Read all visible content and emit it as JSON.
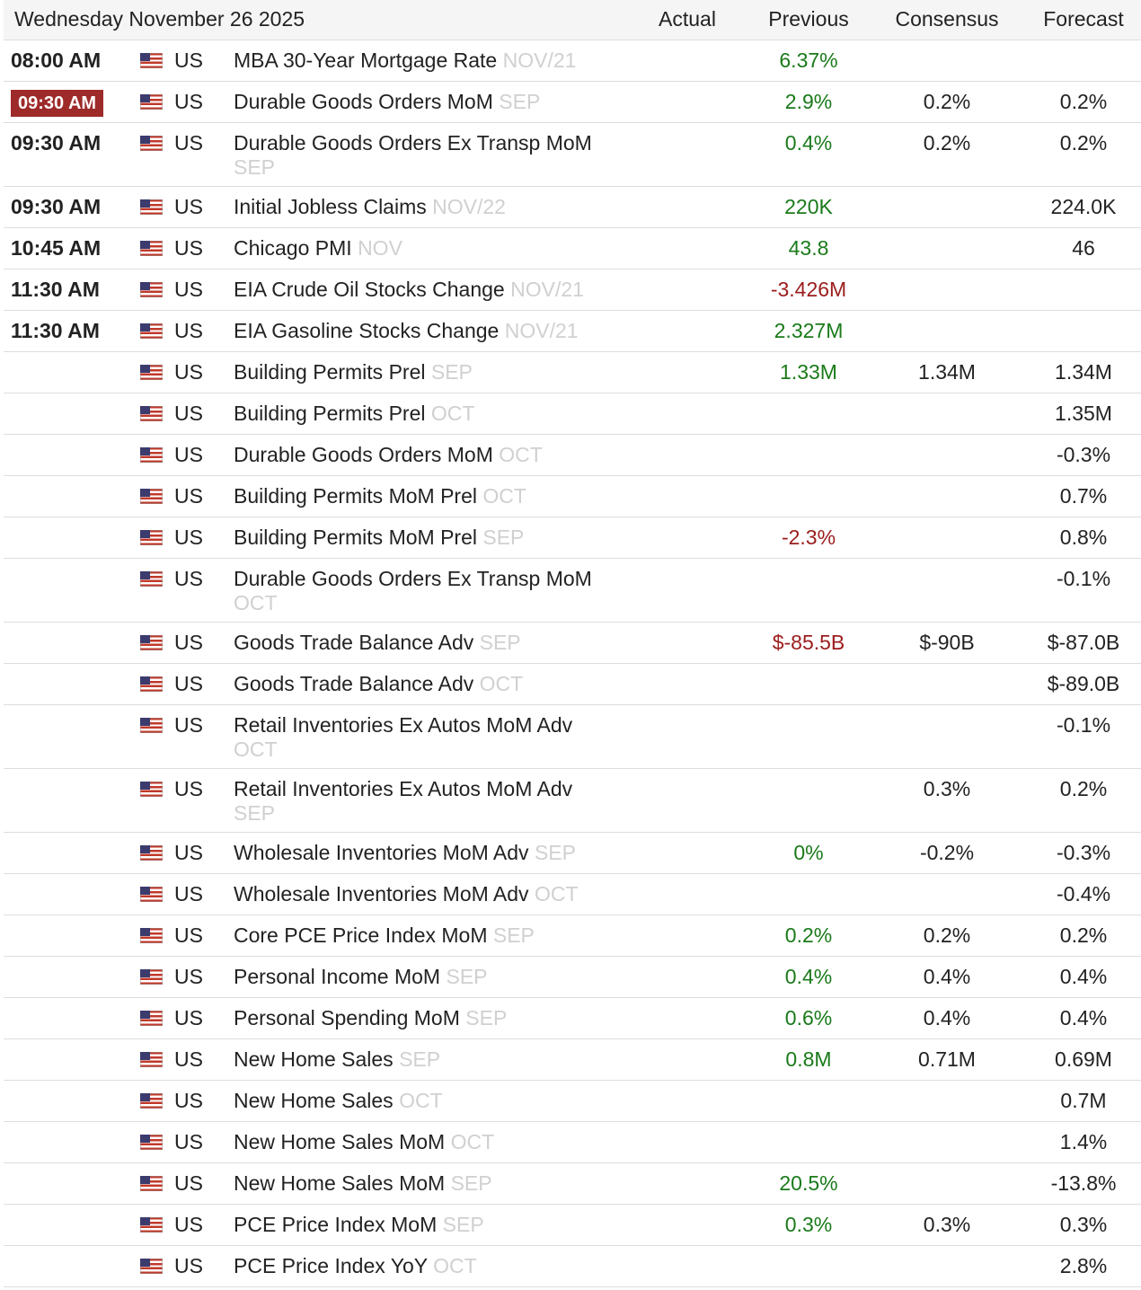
{
  "header": {
    "date": "Wednesday November 26 2025",
    "actual": "Actual",
    "previous": "Previous",
    "consensus": "Consensus",
    "forecast": "Forecast"
  },
  "colors": {
    "positive": "#1a7a1a",
    "negative": "#9b1c1c",
    "reference": "#d0d0d0",
    "badge": "#9e2a2a"
  },
  "rows": [
    {
      "time": "08:00 AM",
      "country": "US",
      "event": "MBA 30-Year Mortgage Rate",
      "ref": "NOV/21",
      "actual": "",
      "previous": "6.37%",
      "prev_tone": "pos",
      "consensus": "",
      "forecast": ""
    },
    {
      "time": "09:30 AM",
      "time_highlight": true,
      "country": "US",
      "event": "Durable Goods Orders MoM",
      "ref": "SEP",
      "actual": "",
      "previous": "2.9%",
      "prev_tone": "pos",
      "consensus": "0.2%",
      "forecast": "0.2%"
    },
    {
      "time": "09:30 AM",
      "country": "US",
      "event": "Durable Goods Orders Ex Transp MoM",
      "ref": "SEP",
      "tall": true,
      "actual": "",
      "previous": "0.4%",
      "prev_tone": "pos",
      "consensus": "0.2%",
      "forecast": "0.2%"
    },
    {
      "time": "09:30 AM",
      "country": "US",
      "event": "Initial Jobless Claims",
      "ref": "NOV/22",
      "actual": "",
      "previous": "220K",
      "prev_tone": "pos",
      "consensus": "",
      "forecast": "224.0K"
    },
    {
      "time": "10:45 AM",
      "country": "US",
      "event": "Chicago PMI",
      "ref": "NOV",
      "actual": "",
      "previous": "43.8",
      "prev_tone": "pos",
      "consensus": "",
      "forecast": "46"
    },
    {
      "time": "11:30 AM",
      "country": "US",
      "event": "EIA Crude Oil Stocks Change",
      "ref": "NOV/21",
      "actual": "",
      "previous": "-3.426M",
      "prev_tone": "neg",
      "consensus": "",
      "forecast": ""
    },
    {
      "time": "11:30 AM",
      "country": "US",
      "event": "EIA Gasoline Stocks Change",
      "ref": "NOV/21",
      "actual": "",
      "previous": "2.327M",
      "prev_tone": "pos",
      "consensus": "",
      "forecast": ""
    },
    {
      "time": "",
      "country": "US",
      "event": "Building Permits Prel",
      "ref": "SEP",
      "actual": "",
      "previous": "1.33M",
      "prev_tone": "pos",
      "consensus": "1.34M",
      "forecast": "1.34M"
    },
    {
      "time": "",
      "country": "US",
      "event": "Building Permits Prel",
      "ref": "OCT",
      "actual": "",
      "previous": "",
      "prev_tone": "pos",
      "consensus": "",
      "forecast": "1.35M"
    },
    {
      "time": "",
      "country": "US",
      "event": "Durable Goods Orders MoM",
      "ref": "OCT",
      "actual": "",
      "previous": "",
      "prev_tone": "pos",
      "consensus": "",
      "forecast": "-0.3%"
    },
    {
      "time": "",
      "country": "US",
      "event": "Building Permits MoM Prel",
      "ref": "OCT",
      "actual": "",
      "previous": "",
      "prev_tone": "pos",
      "consensus": "",
      "forecast": "0.7%"
    },
    {
      "time": "",
      "country": "US",
      "event": "Building Permits MoM Prel",
      "ref": "SEP",
      "actual": "",
      "previous": "-2.3%",
      "prev_tone": "neg",
      "consensus": "",
      "forecast": "0.8%"
    },
    {
      "time": "",
      "country": "US",
      "event": "Durable Goods Orders Ex Transp MoM",
      "ref": "OCT",
      "tall": true,
      "actual": "",
      "previous": "",
      "prev_tone": "pos",
      "consensus": "",
      "forecast": "-0.1%"
    },
    {
      "time": "",
      "country": "US",
      "event": "Goods Trade Balance Adv",
      "ref": "SEP",
      "actual": "",
      "previous": "$-85.5B",
      "prev_tone": "neg",
      "consensus": "$-90B",
      "forecast": "$-87.0B"
    },
    {
      "time": "",
      "country": "US",
      "event": "Goods Trade Balance Adv",
      "ref": "OCT",
      "actual": "",
      "previous": "",
      "prev_tone": "pos",
      "consensus": "",
      "forecast": "$-89.0B"
    },
    {
      "time": "",
      "country": "US",
      "event": "Retail Inventories Ex Autos MoM Adv",
      "ref": "OCT",
      "tall": true,
      "actual": "",
      "previous": "",
      "prev_tone": "pos",
      "consensus": "",
      "forecast": "-0.1%"
    },
    {
      "time": "",
      "country": "US",
      "event": "Retail Inventories Ex Autos MoM Adv",
      "ref": "SEP",
      "tall": true,
      "actual": "",
      "previous": "",
      "prev_tone": "pos",
      "consensus": "0.3%",
      "forecast": "0.2%"
    },
    {
      "time": "",
      "country": "US",
      "event": "Wholesale Inventories MoM Adv",
      "ref": "SEP",
      "actual": "",
      "previous": "0%",
      "prev_tone": "pos",
      "consensus": "-0.2%",
      "forecast": "-0.3%"
    },
    {
      "time": "",
      "country": "US",
      "event": "Wholesale Inventories MoM Adv",
      "ref": "OCT",
      "actual": "",
      "previous": "",
      "prev_tone": "pos",
      "consensus": "",
      "forecast": "-0.4%"
    },
    {
      "time": "",
      "country": "US",
      "event": "Core PCE Price Index MoM",
      "ref": "SEP",
      "actual": "",
      "previous": "0.2%",
      "prev_tone": "pos",
      "consensus": "0.2%",
      "forecast": "0.2%"
    },
    {
      "time": "",
      "country": "US",
      "event": "Personal Income MoM",
      "ref": "SEP",
      "actual": "",
      "previous": "0.4%",
      "prev_tone": "pos",
      "consensus": "0.4%",
      "forecast": "0.4%"
    },
    {
      "time": "",
      "country": "US",
      "event": "Personal Spending MoM",
      "ref": "SEP",
      "actual": "",
      "previous": "0.6%",
      "prev_tone": "pos",
      "consensus": "0.4%",
      "forecast": "0.4%"
    },
    {
      "time": "",
      "country": "US",
      "event": "New Home Sales",
      "ref": "SEP",
      "actual": "",
      "previous": "0.8M",
      "prev_tone": "pos",
      "consensus": "0.71M",
      "forecast": "0.69M"
    },
    {
      "time": "",
      "country": "US",
      "event": "New Home Sales",
      "ref": "OCT",
      "actual": "",
      "previous": "",
      "prev_tone": "pos",
      "consensus": "",
      "forecast": "0.7M"
    },
    {
      "time": "",
      "country": "US",
      "event": "New Home Sales MoM",
      "ref": "OCT",
      "actual": "",
      "previous": "",
      "prev_tone": "pos",
      "consensus": "",
      "forecast": "1.4%"
    },
    {
      "time": "",
      "country": "US",
      "event": "New Home Sales MoM",
      "ref": "SEP",
      "actual": "",
      "previous": "20.5%",
      "prev_tone": "pos",
      "consensus": "",
      "forecast": "-13.8%"
    },
    {
      "time": "",
      "country": "US",
      "event": "PCE Price Index MoM",
      "ref": "SEP",
      "actual": "",
      "previous": "0.3%",
      "prev_tone": "pos",
      "consensus": "0.3%",
      "forecast": "0.3%"
    },
    {
      "time": "",
      "country": "US",
      "event": "PCE Price Index YoY",
      "ref": "OCT",
      "actual": "",
      "previous": "",
      "prev_tone": "pos",
      "consensus": "",
      "forecast": "2.8%"
    }
  ]
}
